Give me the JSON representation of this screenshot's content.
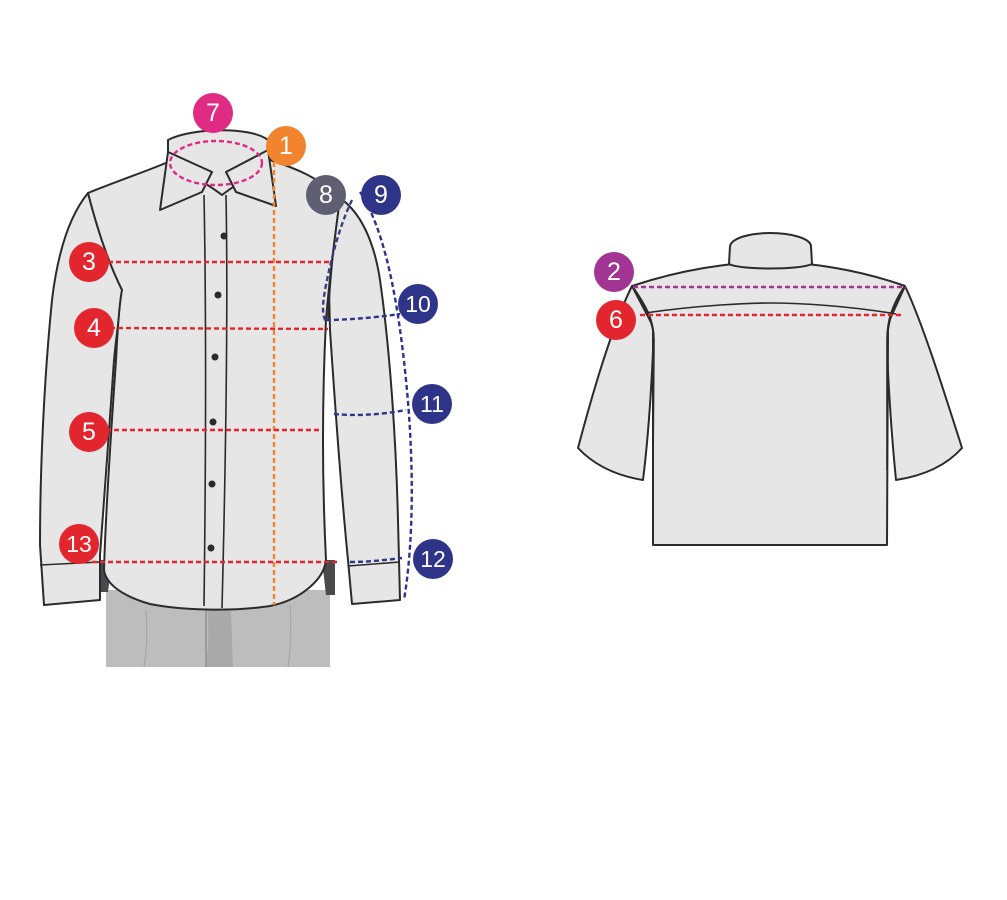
{
  "colors": {
    "red": "#e3262e",
    "orange": "#f1842c",
    "magenta": "#e02b85",
    "purple": "#a23493",
    "navy": "#2e3487",
    "slate": "#5f5e73",
    "shirt": "#e6e6e7",
    "trousers": "#bdbdbe"
  },
  "badges": {
    "b1": "1",
    "b2": "2",
    "b3": "3",
    "b4": "4",
    "b5": "5",
    "b6": "6",
    "b7": "7",
    "b8": "8",
    "b9": "9",
    "b10": "10",
    "b11": "11",
    "b12": "12",
    "b13": "13"
  }
}
